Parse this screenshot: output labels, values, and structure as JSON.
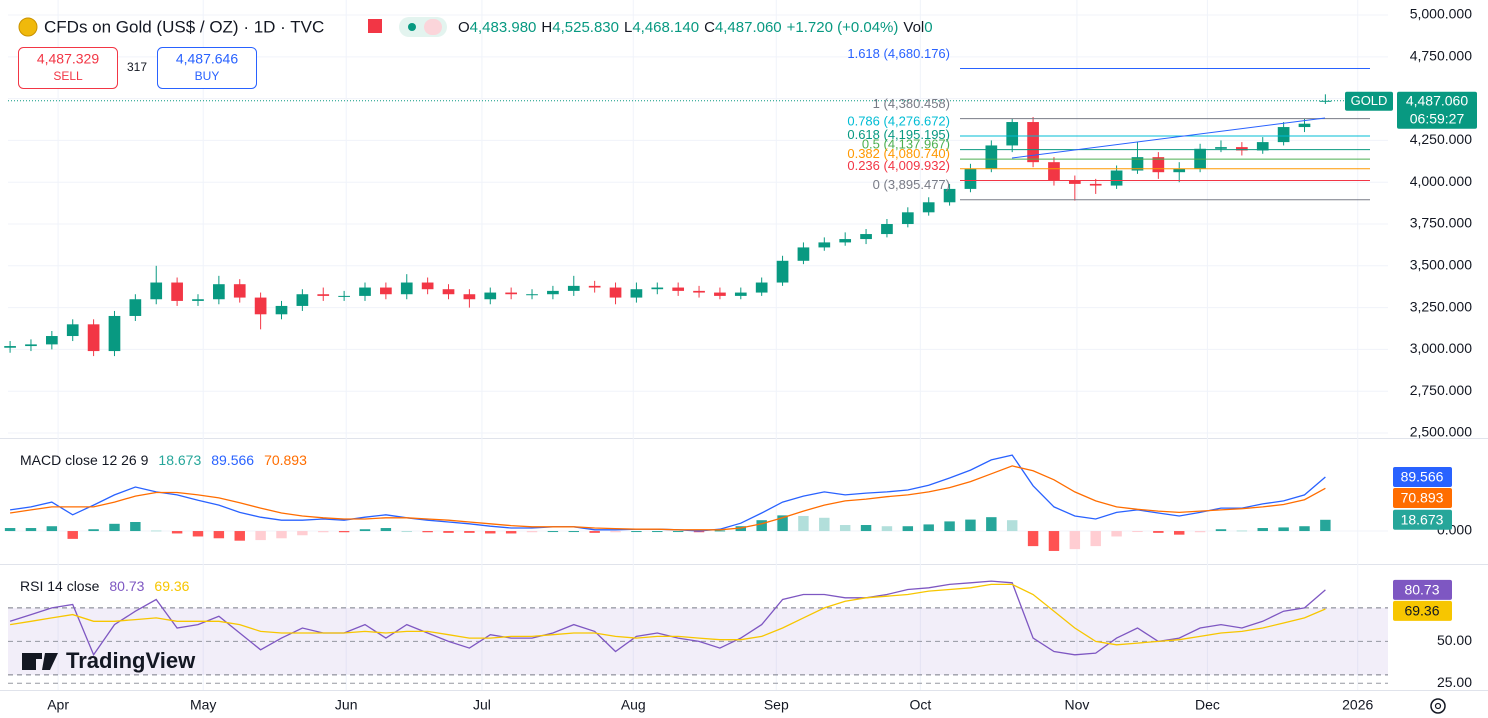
{
  "header": {
    "title": "CFDs on Gold (US$ / OZ) · 1D · TVC",
    "open_label": "O",
    "open": "4,483.980",
    "high_label": "H",
    "high": "4,525.830",
    "low_label": "L",
    "low": "4,468.140",
    "close_label": "C",
    "close": "4,487.060",
    "change": "+1.720 (+0.04%)",
    "volume_label": "Vol",
    "volume": "0"
  },
  "trade": {
    "sell_price": "4,487.329",
    "sell_label": "SELL",
    "spread": "317",
    "buy_price": "4,487.646",
    "buy_label": "BUY"
  },
  "branding": "TradingView",
  "chart_data": [
    {
      "type": "candlestick",
      "up_color": "#089981",
      "down_color": "#f23645",
      "grid": true,
      "open": [
        3010,
        3020,
        3030,
        3080,
        3150,
        2990,
        3200,
        3300,
        3400,
        3290,
        3300,
        3390,
        3310,
        3210,
        3260,
        3330,
        3320,
        3320,
        3370,
        3330,
        3400,
        3360,
        3330,
        3300,
        3340,
        3330,
        3330,
        3350,
        3380,
        3370,
        3310,
        3360,
        3370,
        3350,
        3340,
        3320,
        3340,
        3400,
        3530,
        3610,
        3640,
        3660,
        3690,
        3750,
        3820,
        3880,
        3960,
        4080,
        4220,
        4360,
        4120,
        4010,
        3990,
        3980,
        4070,
        4150,
        4060,
        4080,
        4200,
        4210,
        4190,
        4240,
        4330,
        4483.98
      ],
      "high": [
        3050,
        3060,
        3110,
        3180,
        3180,
        3230,
        3330,
        3500,
        3430,
        3330,
        3440,
        3420,
        3340,
        3290,
        3360,
        3370,
        3350,
        3400,
        3400,
        3450,
        3430,
        3390,
        3360,
        3370,
        3370,
        3360,
        3380,
        3440,
        3410,
        3400,
        3400,
        3400,
        3400,
        3380,
        3370,
        3370,
        3430,
        3560,
        3640,
        3670,
        3700,
        3720,
        3780,
        3850,
        3910,
        3990,
        4110,
        4250,
        4380,
        4390,
        4150,
        4040,
        4020,
        4100,
        4240,
        4180,
        4120,
        4230,
        4250,
        4240,
        4270,
        4360,
        4380,
        4525.83
      ],
      "low": [
        2980,
        2990,
        3000,
        3050,
        2960,
        2960,
        3170,
        3270,
        3260,
        3260,
        3270,
        3280,
        3120,
        3180,
        3230,
        3290,
        3290,
        3290,
        3300,
        3300,
        3330,
        3300,
        3250,
        3270,
        3300,
        3300,
        3300,
        3320,
        3340,
        3270,
        3280,
        3330,
        3320,
        3310,
        3300,
        3300,
        3320,
        3380,
        3510,
        3590,
        3620,
        3630,
        3670,
        3730,
        3800,
        3860,
        3940,
        4060,
        4180,
        4090,
        3980,
        3890,
        3930,
        3960,
        4050,
        4020,
        4000,
        4060,
        4180,
        4160,
        4170,
        4220,
        4300,
        4468.14
      ],
      "close": [
        3020,
        3030,
        3080,
        3150,
        2990,
        3200,
        3300,
        3400,
        3290,
        3300,
        3390,
        3310,
        3210,
        3260,
        3330,
        3320,
        3320,
        3370,
        3330,
        3400,
        3360,
        3330,
        3300,
        3340,
        3330,
        3330,
        3350,
        3380,
        3370,
        3310,
        3360,
        3370,
        3350,
        3340,
        3320,
        3340,
        3400,
        3530,
        3610,
        3640,
        3660,
        3690,
        3750,
        3820,
        3880,
        3960,
        4080,
        4220,
        4360,
        4120,
        4010,
        3990,
        3980,
        4070,
        4150,
        4060,
        4080,
        4200,
        4210,
        4190,
        4240,
        4330,
        4350,
        4487.06
      ],
      "xlim": [
        -0.1,
        66
      ],
      "xticks": [
        {
          "value": 2.3,
          "label": "Apr"
        },
        {
          "value": 9.25,
          "label": "May"
        },
        {
          "value": 16.1,
          "label": "Jun"
        },
        {
          "value": 22.6,
          "label": "Jul"
        },
        {
          "value": 29.85,
          "label": "Aug"
        },
        {
          "value": 36.7,
          "label": "Sep"
        },
        {
          "value": 43.6,
          "label": "Oct"
        },
        {
          "value": 51.1,
          "label": "Nov"
        },
        {
          "value": 57.35,
          "label": "Dec"
        },
        {
          "value": 64.55,
          "label": "2026"
        }
      ],
      "ylim": [
        2476,
        5090
      ],
      "yticks": [
        {
          "value": 2500,
          "label": "2,500.000"
        },
        {
          "value": 2750,
          "label": "2,750.000"
        },
        {
          "value": 3000,
          "label": "3,000.000"
        },
        {
          "value": 3250,
          "label": "3,250.000"
        },
        {
          "value": 3500,
          "label": "3,500.000"
        },
        {
          "value": 3750,
          "label": "3,750.000"
        },
        {
          "value": 4000,
          "label": "4,000.000"
        },
        {
          "value": 4250,
          "label": "4,250.000"
        },
        {
          "value": 4500,
          "label": "4,500.000"
        },
        {
          "value": 4750,
          "label": "4,750.000"
        },
        {
          "value": 5000,
          "label": "5,000.000"
        }
      ],
      "fib_levels": [
        {
          "value": 4680.176,
          "label": "1.618 (4,680.176)",
          "color": "#2962ff"
        },
        {
          "value": 4380.458,
          "label": "1 (4,380.458)",
          "color": "#787b86"
        },
        {
          "value": 4276.672,
          "label": "0.786 (4,276.672)",
          "color": "#00bcd4"
        },
        {
          "value": 4195.195,
          "label": "0.618 (4,195.195)",
          "color": "#089981"
        },
        {
          "value": 4137.967,
          "label": "0.5 (4,137.967)",
          "color": "#4caf50"
        },
        {
          "value": 4080.74,
          "label": "0.382 (4,080.740)",
          "color": "#ff9800"
        },
        {
          "value": 4009.932,
          "label": "0.236 (4,009.932)",
          "color": "#f23645"
        },
        {
          "value": 3895.477,
          "label": "0 (3,895.477)",
          "color": "#787b86"
        }
      ],
      "last_price": {
        "symbol": "GOLD",
        "price": "4,487.060",
        "countdown": "06:59:27",
        "color": "#089981"
      }
    },
    {
      "type": "macd",
      "title": "MACD close 12 26 9",
      "ylim": [
        -53,
        151
      ],
      "yticks": [
        {
          "value": 0,
          "label": "0.000"
        }
      ],
      "series": [
        {
          "kind": "histogram",
          "color": "#26a69a",
          "values": [
            5,
            5,
            8,
            -13,
            3,
            12,
            15,
            1,
            -4,
            -9,
            -12,
            -16,
            -15,
            -12,
            -7,
            -2,
            -2,
            3,
            5,
            0,
            -2,
            -3,
            -3,
            -4,
            -4,
            -2,
            0,
            0,
            -3,
            -2,
            0,
            0,
            0,
            -2,
            1,
            8,
            18,
            26,
            25,
            22,
            10,
            10,
            8,
            8,
            11,
            16,
            19,
            23,
            18,
            -25,
            -33,
            -30,
            -25,
            -9,
            -1,
            -3,
            -6,
            -2,
            3,
            1,
            5,
            6,
            8,
            18.673
          ]
        },
        {
          "kind": "line",
          "color": "#2962ff",
          "values": [
            35,
            40,
            48,
            27,
            43,
            60,
            73,
            65,
            60,
            51,
            43,
            31,
            23,
            18,
            18,
            20,
            18,
            23,
            27,
            22,
            18,
            15,
            12,
            8,
            5,
            5,
            7,
            7,
            2,
            2,
            3,
            3,
            2,
            0,
            3,
            13,
            30,
            48,
            58,
            65,
            60,
            63,
            65,
            68,
            76,
            88,
            101,
            118,
            126,
            75,
            40,
            25,
            20,
            31,
            35,
            30,
            25,
            31,
            38,
            38,
            45,
            50,
            60,
            89.566
          ]
        },
        {
          "kind": "line",
          "color": "#ff6d00",
          "values": [
            30,
            35,
            40,
            40,
            40,
            48,
            58,
            64,
            64,
            60,
            55,
            47,
            38,
            30,
            25,
            22,
            20,
            20,
            22,
            22,
            20,
            18,
            15,
            12,
            9,
            7,
            7,
            7,
            5,
            4,
            3,
            3,
            2,
            2,
            2,
            5,
            12,
            22,
            33,
            43,
            50,
            53,
            57,
            60,
            65,
            72,
            82,
            95,
            108,
            100,
            85,
            65,
            50,
            40,
            36,
            33,
            31,
            33,
            35,
            37,
            40,
            44,
            52,
            70.893
          ]
        }
      ]
    },
    {
      "type": "rsi",
      "title": "RSI 14 close",
      "ylim": [
        21,
        95
      ],
      "yticks": [
        {
          "value": 50,
          "label": "50.00"
        },
        {
          "value": 25,
          "label": "25.00"
        }
      ],
      "bands": [
        30,
        70
      ],
      "series": [
        {
          "kind": "line",
          "color": "#7e57c2",
          "values": [
            62,
            66,
            70,
            72,
            42,
            60,
            68,
            75,
            58,
            60,
            65,
            55,
            45,
            52,
            58,
            55,
            55,
            60,
            52,
            60,
            55,
            50,
            46,
            54,
            52,
            52,
            55,
            60,
            56,
            44,
            53,
            55,
            52,
            50,
            46,
            52,
            60,
            75,
            78,
            78,
            76,
            76,
            78,
            81,
            82,
            84,
            85,
            86,
            85,
            52,
            44,
            42,
            43,
            52,
            58,
            50,
            52,
            58,
            60,
            58,
            62,
            68,
            70,
            80.73
          ]
        },
        {
          "kind": "line",
          "color": "#f7c600",
          "values": [
            60,
            62,
            64,
            66,
            62,
            62,
            63,
            64,
            62,
            62,
            62,
            60,
            56,
            55,
            55,
            55,
            55,
            56,
            55,
            56,
            56,
            54,
            52,
            52,
            53,
            53,
            54,
            55,
            55,
            53,
            52,
            53,
            53,
            52,
            51,
            51,
            53,
            58,
            64,
            70,
            74,
            76,
            77,
            78,
            80,
            81,
            82,
            84,
            84,
            78,
            68,
            58,
            50,
            48,
            49,
            50,
            51,
            53,
            55,
            56,
            58,
            61,
            64,
            69.36
          ]
        }
      ]
    }
  ]
}
